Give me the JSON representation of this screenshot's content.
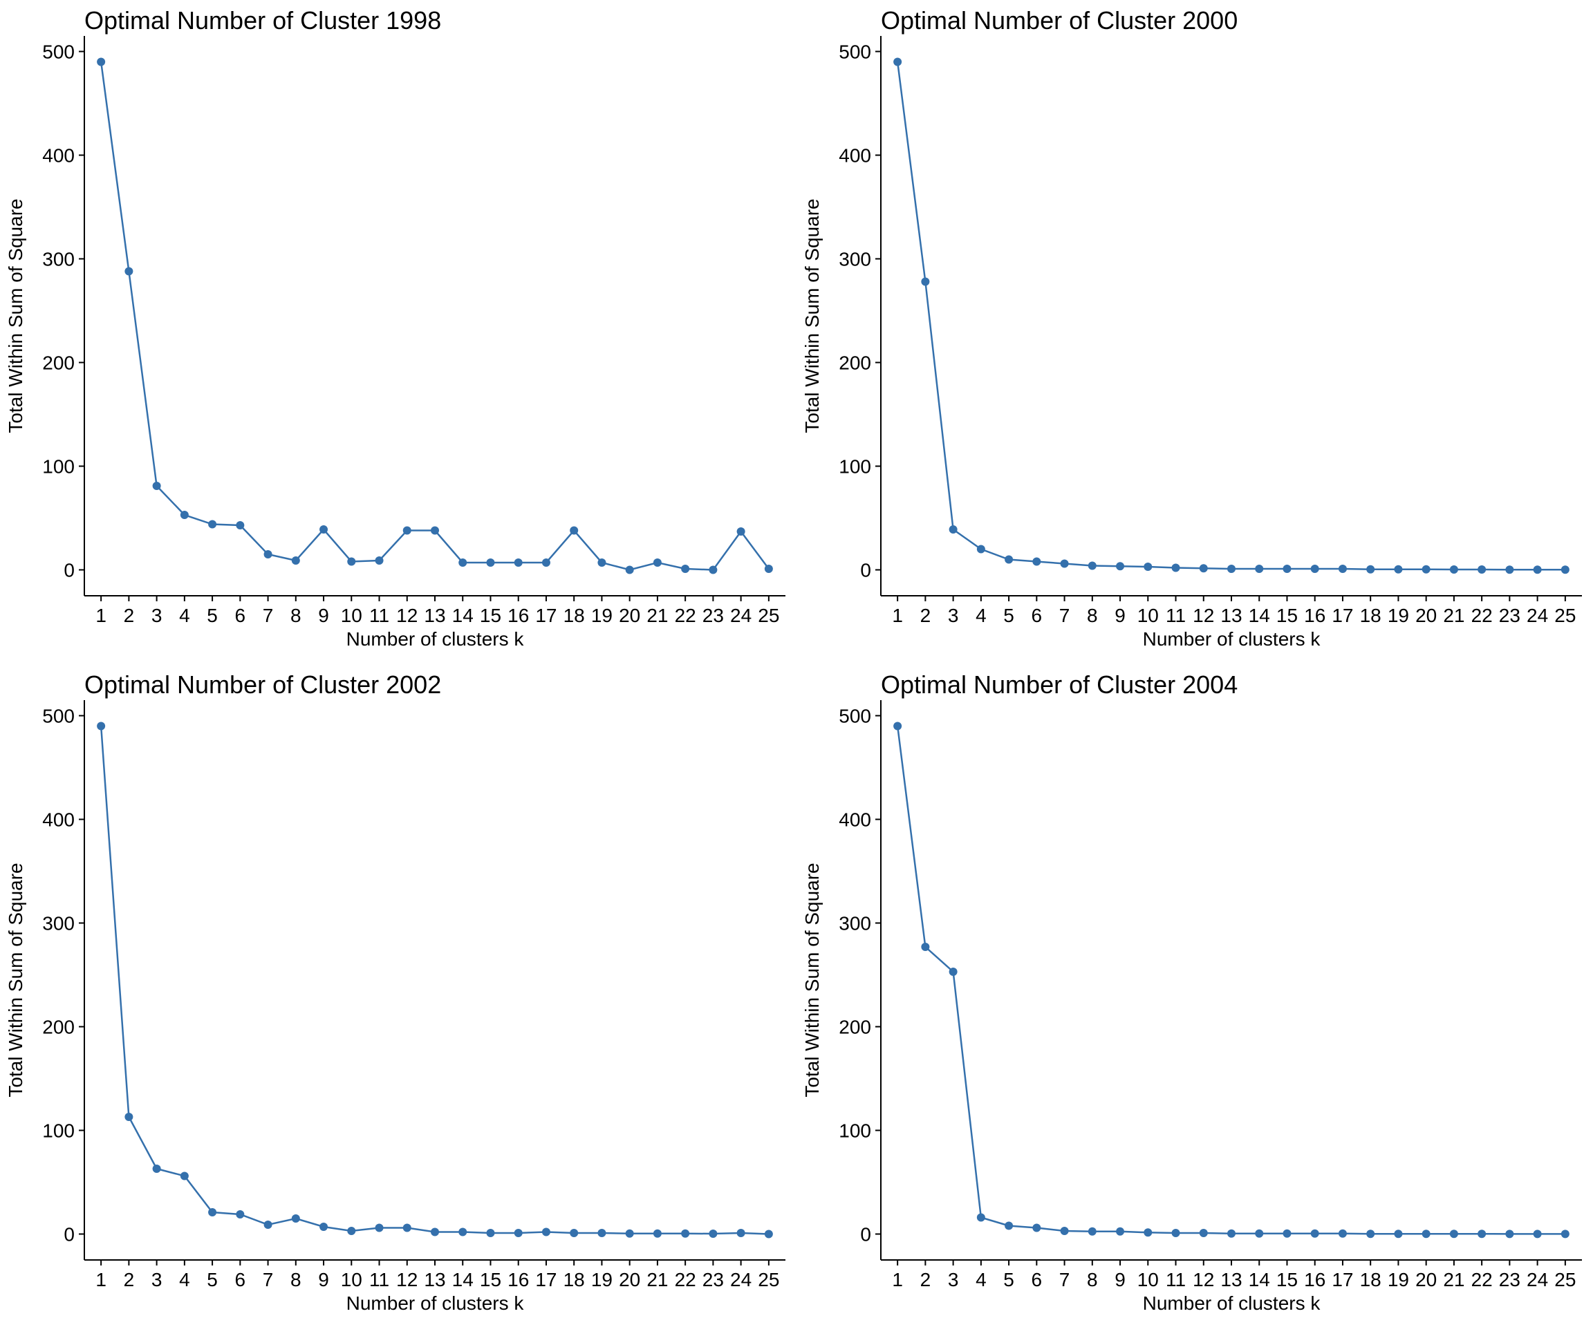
{
  "chart_data": [
    {
      "type": "line",
      "title": "Optimal Number of Cluster 1998",
      "xlabel": "Number of clusters k",
      "ylabel": "Total Within Sum of Square",
      "x": [
        1,
        2,
        3,
        4,
        5,
        6,
        7,
        8,
        9,
        10,
        11,
        12,
        13,
        14,
        15,
        16,
        17,
        18,
        19,
        20,
        21,
        22,
        23,
        24,
        25
      ],
      "y": [
        490,
        288,
        81,
        53,
        44,
        43,
        15,
        9,
        39,
        8,
        9,
        38,
        38,
        7,
        7,
        7,
        7,
        38,
        7,
        0,
        7,
        1,
        0,
        37,
        1
      ],
      "yticks": [
        0,
        100,
        200,
        300,
        400,
        500
      ],
      "ylim": [
        -25,
        515
      ],
      "xlim": [
        0.4,
        25.6
      ],
      "grid": false,
      "color": "#3470ac"
    },
    {
      "type": "line",
      "title": "Optimal Number of Cluster 2000",
      "xlabel": "Number of clusters k",
      "ylabel": "Total Within Sum of Square",
      "x": [
        1,
        2,
        3,
        4,
        5,
        6,
        7,
        8,
        9,
        10,
        11,
        12,
        13,
        14,
        15,
        16,
        17,
        18,
        19,
        20,
        21,
        22,
        23,
        24,
        25
      ],
      "y": [
        490,
        278,
        39,
        20,
        10,
        8,
        6,
        4,
        3.5,
        3,
        2,
        1.5,
        1,
        1,
        1,
        1,
        1,
        0.5,
        0.5,
        0.5,
        0.3,
        0.3,
        0.2,
        0.2,
        0.2
      ],
      "yticks": [
        0,
        100,
        200,
        300,
        400,
        500
      ],
      "ylim": [
        -25,
        515
      ],
      "xlim": [
        0.4,
        25.6
      ],
      "grid": false,
      "color": "#3470ac"
    },
    {
      "type": "line",
      "title": "Optimal Number of Cluster 2002",
      "xlabel": "Number of clusters k",
      "ylabel": "Total Within Sum of Square",
      "x": [
        1,
        2,
        3,
        4,
        5,
        6,
        7,
        8,
        9,
        10,
        11,
        12,
        13,
        14,
        15,
        16,
        17,
        18,
        19,
        20,
        21,
        22,
        23,
        24,
        25
      ],
      "y": [
        490,
        113,
        63,
        56,
        21,
        19,
        9,
        15,
        7,
        3,
        6,
        6,
        2,
        2,
        1,
        1,
        2,
        1,
        1,
        0.5,
        0.5,
        0.5,
        0.3,
        1,
        0
      ],
      "yticks": [
        0,
        100,
        200,
        300,
        400,
        500
      ],
      "ylim": [
        -25,
        515
      ],
      "xlim": [
        0.4,
        25.6
      ],
      "grid": false,
      "color": "#3470ac"
    },
    {
      "type": "line",
      "title": "Optimal Number of Cluster 2004",
      "xlabel": "Number of clusters k",
      "ylabel": "Total Within Sum of Square",
      "x": [
        1,
        2,
        3,
        4,
        5,
        6,
        7,
        8,
        9,
        10,
        11,
        12,
        13,
        14,
        15,
        16,
        17,
        18,
        19,
        20,
        21,
        22,
        23,
        24,
        25
      ],
      "y": [
        490,
        277,
        253,
        16,
        8,
        6,
        3,
        2.5,
        2.5,
        1.5,
        1,
        1,
        0.5,
        0.5,
        0.5,
        0.5,
        0.5,
        0.2,
        0.2,
        0.2,
        0.2,
        0.2,
        0.1,
        0.1,
        0.1
      ],
      "yticks": [
        0,
        100,
        200,
        300,
        400,
        500
      ],
      "ylim": [
        -25,
        515
      ],
      "xlim": [
        0.4,
        25.6
      ],
      "grid": false,
      "color": "#3470ac"
    }
  ]
}
